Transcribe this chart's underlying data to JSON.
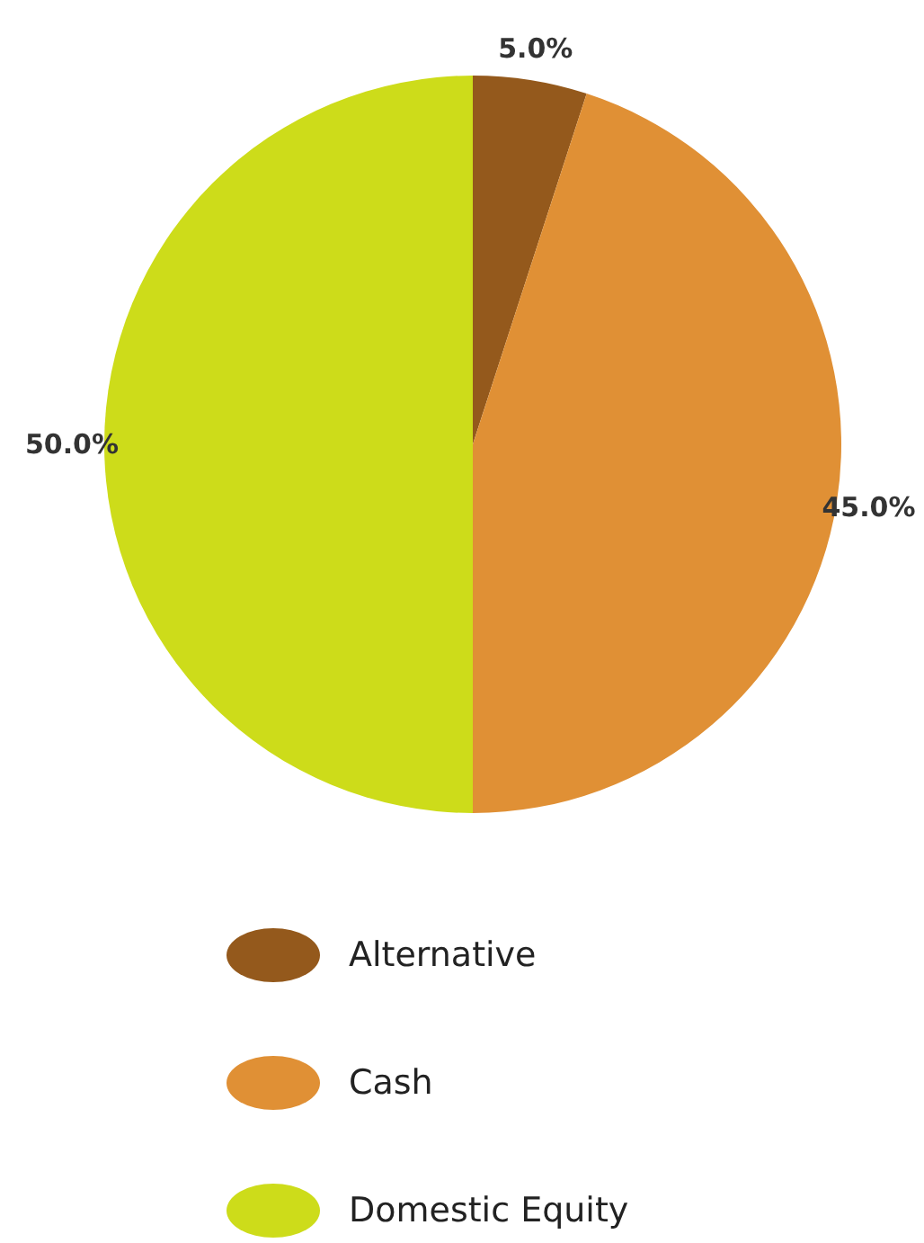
{
  "chart_data": {
    "type": "pie",
    "categories": [
      "Alternative",
      "Cash",
      "Domestic Equity"
    ],
    "values": [
      5,
      45,
      50
    ],
    "colors": [
      "#94591c",
      "#e09035",
      "#cddc1a"
    ],
    "value_labels": [
      "5.0%",
      "45.0%",
      "50.0%"
    ],
    "legend": "bottom"
  }
}
